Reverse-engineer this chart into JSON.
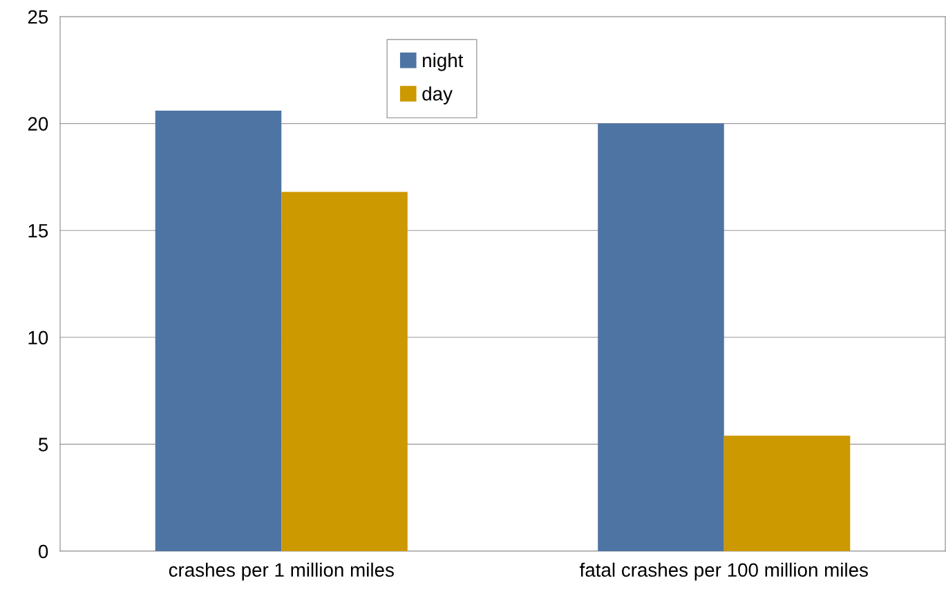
{
  "chart_data": {
    "type": "bar",
    "categories": [
      "crashes per 1 million miles",
      "fatal crashes per 100 million miles"
    ],
    "series": [
      {
        "name": "night",
        "color": "#4e74a4",
        "values": [
          20.6,
          20.0
        ]
      },
      {
        "name": "day",
        "color": "#cc9900",
        "values": [
          16.8,
          5.4
        ]
      }
    ],
    "ylim": [
      0,
      25
    ],
    "yticks": [
      0,
      5,
      10,
      15,
      20,
      25
    ],
    "grid": "y",
    "legend": "top"
  }
}
